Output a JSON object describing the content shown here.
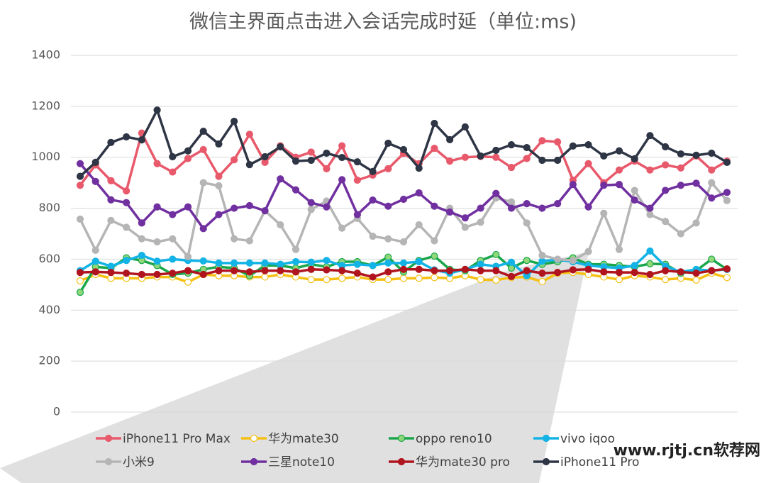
{
  "chart_data": {
    "type": "line",
    "title": "微信主界面点击进入会话完成时延（单位:ms)",
    "categories": [
      null,
      null,
      null,
      null,
      null,
      null,
      null,
      null,
      null,
      null,
      null,
      null,
      null,
      null,
      null,
      null,
      null,
      null,
      null,
      null,
      null,
      null,
      null,
      null,
      null,
      null,
      null,
      null,
      null,
      null,
      null,
      null,
      null,
      null,
      null,
      null,
      null,
      null,
      null,
      null,
      null,
      null,
      null
    ],
    "ylim": [
      0,
      1400
    ],
    "yticks": [
      0,
      200,
      400,
      600,
      800,
      1000,
      1200,
      1400
    ],
    "grid": true,
    "series": [
      {
        "name": "iPhone11 Pro Max",
        "color": "#e8596b",
        "marker_fill": "#e8596b",
        "values": [
          890,
          970,
          908,
          868,
          1095,
          975,
          942,
          995,
          1030,
          925,
          990,
          1090,
          980,
          1045,
          1000,
          1020,
          955,
          1045,
          910,
          930,
          955,
          1015,
          975,
          1035,
          985,
          1000,
          1003,
          1000,
          960,
          995,
          1065,
          1060,
          910,
          975,
          900,
          950,
          985,
          950,
          970,
          958,
          1005,
          950,
          985
        ]
      },
      {
        "name": "华为mate30",
        "color": "#f5c013",
        "marker_fill": "#ffffff",
        "values": [
          515,
          540,
          525,
          525,
          525,
          530,
          530,
          510,
          540,
          535,
          535,
          530,
          530,
          540,
          530,
          520,
          520,
          525,
          530,
          520,
          520,
          525,
          525,
          528,
          525,
          535,
          520,
          518,
          528,
          530,
          512,
          545,
          548,
          540,
          530,
          520,
          535,
          530,
          520,
          525,
          518,
          545,
          528
        ]
      },
      {
        "name": "oppo reno10",
        "color": "#1aa64a",
        "marker_fill": "#8ed87a",
        "values": [
          470,
          570,
          565,
          605,
          595,
          575,
          540,
          545,
          560,
          570,
          565,
          535,
          575,
          575,
          565,
          580,
          570,
          590,
          590,
          575,
          608,
          550,
          595,
          612,
          560,
          555,
          595,
          618,
          565,
          595,
          580,
          590,
          605,
          580,
          580,
          575,
          570,
          582,
          580,
          545,
          555,
          600,
          560
        ]
      },
      {
        "name": "vivo iqoo",
        "color": "#13b3e6",
        "marker_fill": "#13b3e6",
        "values": [
          555,
          592,
          572,
          595,
          615,
          592,
          600,
          595,
          593,
          585,
          585,
          585,
          585,
          580,
          590,
          588,
          595,
          575,
          580,
          575,
          585,
          585,
          590,
          558,
          545,
          560,
          580,
          572,
          588,
          535,
          592,
          598,
          590,
          575,
          570,
          565,
          575,
          632,
          572,
          550,
          560,
          555,
          560
        ]
      },
      {
        "name": "小米9",
        "color": "#b5b5b5",
        "marker_fill": "#b5b5b5",
        "values": [
          757,
          635,
          752,
          725,
          680,
          668,
          680,
          610,
          900,
          888,
          680,
          672,
          790,
          735,
          638,
          795,
          828,
          722,
          760,
          690,
          680,
          668,
          735,
          672,
          800,
          725,
          745,
          840,
          825,
          742,
          615,
          600,
          595,
          630,
          780,
          638,
          870,
          775,
          748,
          700,
          742,
          900,
          830
        ]
      },
      {
        "name": "三星note10",
        "color": "#7030a0",
        "marker_fill": "#7030a0",
        "values": [
          975,
          905,
          833,
          822,
          742,
          805,
          775,
          805,
          720,
          775,
          800,
          810,
          790,
          915,
          872,
          822,
          805,
          912,
          775,
          832,
          808,
          835,
          860,
          808,
          785,
          762,
          800,
          858,
          800,
          818,
          800,
          818,
          893,
          805,
          890,
          893,
          832,
          800,
          870,
          890,
          898,
          840,
          862
        ]
      },
      {
        "name": "华为mate30 pro",
        "color": "#b0141e",
        "marker_fill": "#b0141e",
        "values": [
          548,
          550,
          548,
          545,
          540,
          540,
          545,
          555,
          540,
          555,
          555,
          550,
          555,
          555,
          550,
          560,
          558,
          555,
          545,
          530,
          550,
          560,
          560,
          555,
          555,
          560,
          555,
          555,
          532,
          555,
          545,
          548,
          558,
          560,
          550,
          548,
          548,
          540,
          555,
          550,
          545,
          555,
          562
        ]
      },
      {
        "name": "iPhone11 Pro",
        "color": "#2e3545",
        "marker_fill": "#2e3545",
        "values": [
          925,
          980,
          1058,
          1080,
          1068,
          1185,
          1002,
          1025,
          1102,
          1052,
          1141,
          971,
          1002,
          1041,
          985,
          988,
          1016,
          999,
          982,
          944,
          1055,
          1030,
          957,
          1133,
          1069,
          1119,
          1005,
          1027,
          1049,
          1038,
          988,
          988,
          1044,
          1049,
          1005,
          1025,
          994,
          1085,
          1041,
          1013,
          1008,
          1016,
          980
        ]
      }
    ],
    "watermark": "www.rjtj.cn软荐网"
  }
}
